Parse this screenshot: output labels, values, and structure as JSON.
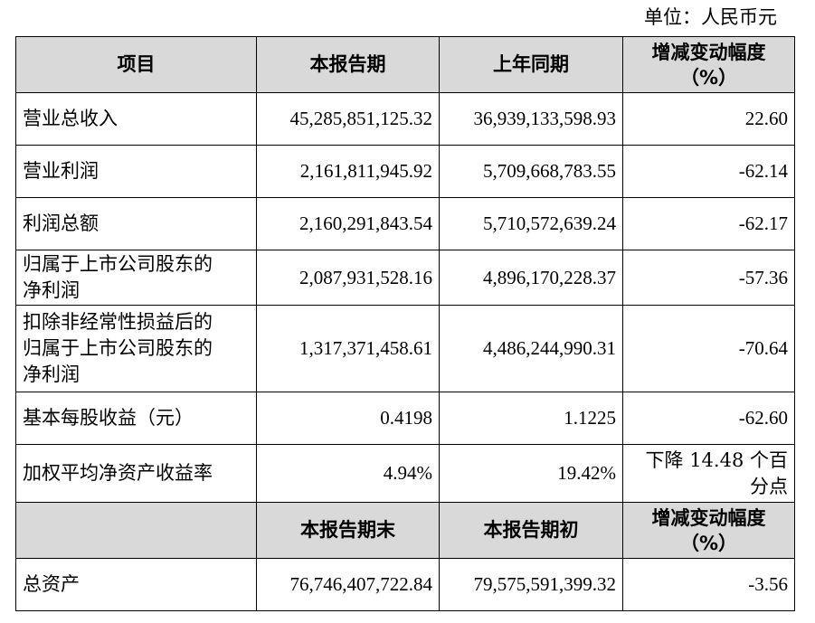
{
  "unit_label": "单位：人民币元",
  "header": {
    "item": "项目",
    "current": "本报告期",
    "previous": "上年同期",
    "change_line1": "增减变动幅度",
    "change_line2": "（%）"
  },
  "rows": [
    {
      "item": "营业总收入",
      "current": "45,285,851,125.32",
      "previous": "36,939,133,598.93",
      "change": "22.60"
    },
    {
      "item": "营业利润",
      "current": "2,161,811,945.92",
      "previous": "5,709,668,783.55",
      "change": "-62.14"
    },
    {
      "item": "利润总额",
      "current": "2,160,291,843.54",
      "previous": "5,710,572,639.24",
      "change": "-62.17"
    },
    {
      "item_lines": [
        "归属于上市公司股东的",
        "净利润"
      ],
      "current": "2,087,931,528.16",
      "previous": "4,896,170,228.37",
      "change": "-57.36"
    },
    {
      "item_lines": [
        "扣除非经常性损益后的",
        "归属于上市公司股东的",
        "净利润"
      ],
      "current": "1,317,371,458.61",
      "previous": "4,486,244,990.31",
      "change": "-70.64"
    },
    {
      "item": "基本每股收益（元）",
      "current": "0.4198",
      "previous": "1.1225",
      "change": "-62.60"
    },
    {
      "item": "加权平均净资产收益率",
      "current": "4.94%",
      "previous": "19.42%",
      "change_lines": [
        "下降 14.48 个百",
        "分点"
      ]
    }
  ],
  "header2": {
    "item": "",
    "current": "本报告期末",
    "previous": "本报告期初",
    "change_line1": "增减变动幅度",
    "change_line2": "（%）"
  },
  "assets": {
    "item": "总资产",
    "current": "76,746,407,722.84",
    "previous": "79,575,591,399.32",
    "change": "-3.56"
  }
}
